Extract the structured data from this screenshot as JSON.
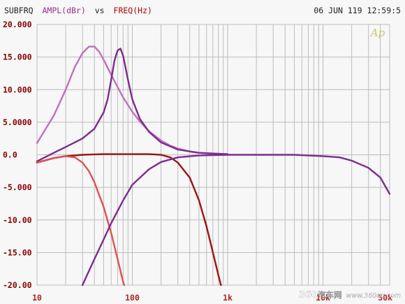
{
  "header": {
    "t1": "SUBFRQ",
    "t2": "AMPL(dBr)",
    "t3": "vs",
    "t4": "FREQ(Hz)",
    "timestamp": "06 JUN 119 12:59:5"
  },
  "logo": "Ap",
  "watermark": {
    "num": "360",
    "cn": "汽车网",
    "url": "www.360qc.com"
  },
  "colors": {
    "background": "#f7f7f7",
    "grid": "#bcbcbc",
    "ytick": "#8b0000",
    "xtick": "#b22222",
    "ampl": "#9b2f8f",
    "freq": "#b00000",
    "logo": "#c8c878"
  },
  "chart_data": {
    "type": "line",
    "xscale": "log",
    "xlim": [
      10,
      50000
    ],
    "ylim": [
      -20,
      20
    ],
    "grid": true,
    "legend": "none",
    "y_tick_labels": [
      "20.000",
      "15.000",
      "10.000",
      "5.0000",
      "0.0",
      "-5.000",
      "-10.00",
      "-15.00",
      "-20.00"
    ],
    "y_tick_values": [
      20,
      15,
      10,
      5,
      0,
      -5,
      -10,
      -15,
      -20
    ],
    "x_tick_labels": [
      "10",
      "100",
      "1k",
      "10k",
      "50k"
    ],
    "x_tick_values": [
      10,
      100,
      1000,
      10000,
      50000
    ],
    "series": [
      {
        "color": "#c070c0",
        "points": [
          [
            10,
            1.8
          ],
          [
            15,
            6
          ],
          [
            20,
            10
          ],
          [
            25,
            13.5
          ],
          [
            30,
            15.6
          ],
          [
            35,
            16.6
          ],
          [
            40,
            16.6
          ],
          [
            45,
            15.8
          ],
          [
            50,
            14.6
          ],
          [
            60,
            12.3
          ],
          [
            70,
            10.4
          ],
          [
            80,
            8.8
          ],
          [
            100,
            6.6
          ],
          [
            120,
            5.1
          ],
          [
            150,
            3.6
          ],
          [
            200,
            2.2
          ],
          [
            250,
            1.4
          ],
          [
            300,
            0.95
          ],
          [
            400,
            0.5
          ],
          [
            500,
            0.3
          ],
          [
            700,
            0.15
          ],
          [
            1000,
            0.1
          ]
        ]
      },
      {
        "color": "#7d2b90",
        "points": [
          [
            10,
            -1
          ],
          [
            15,
            0.3
          ],
          [
            20,
            1.2
          ],
          [
            30,
            2.5
          ],
          [
            40,
            4
          ],
          [
            50,
            6.5
          ],
          [
            55,
            8.5
          ],
          [
            60,
            11.5
          ],
          [
            65,
            14.5
          ],
          [
            70,
            16
          ],
          [
            75,
            16.3
          ],
          [
            80,
            15.2
          ],
          [
            90,
            11.5
          ],
          [
            100,
            8.5
          ],
          [
            120,
            5.5
          ],
          [
            150,
            3.5
          ],
          [
            200,
            1.9
          ],
          [
            300,
            0.8
          ],
          [
            500,
            0.3
          ],
          [
            1000,
            0.1
          ]
        ]
      },
      {
        "color": "#a01010",
        "points": [
          [
            10,
            -1.2
          ],
          [
            15,
            -0.5
          ],
          [
            20,
            -0.2
          ],
          [
            30,
            0
          ],
          [
            50,
            0.1
          ],
          [
            100,
            0.1
          ],
          [
            150,
            0.1
          ],
          [
            200,
            0
          ],
          [
            250,
            -0.4
          ],
          [
            300,
            -1.2
          ],
          [
            400,
            -3.5
          ],
          [
            500,
            -7
          ],
          [
            600,
            -11
          ],
          [
            700,
            -15
          ],
          [
            800,
            -18.5
          ],
          [
            850,
            -20
          ]
        ]
      },
      {
        "color": "#e05050",
        "points": [
          [
            10,
            -1.2
          ],
          [
            15,
            -0.5
          ],
          [
            20,
            -0.2
          ],
          [
            25,
            -0.4
          ],
          [
            30,
            -1.2
          ],
          [
            35,
            -2.5
          ],
          [
            40,
            -4.2
          ],
          [
            50,
            -8
          ],
          [
            60,
            -12
          ],
          [
            70,
            -16
          ],
          [
            80,
            -19.5
          ],
          [
            82,
            -20
          ]
        ]
      },
      {
        "color": "#7d2b90",
        "points": [
          [
            30,
            -20
          ],
          [
            40,
            -16
          ],
          [
            50,
            -13
          ],
          [
            60,
            -10.5
          ],
          [
            80,
            -7
          ],
          [
            100,
            -4.6
          ],
          [
            150,
            -2.2
          ],
          [
            200,
            -1.1
          ],
          [
            300,
            -0.4
          ],
          [
            500,
            -0.1
          ],
          [
            1000,
            0
          ],
          [
            2000,
            0
          ],
          [
            5000,
            0
          ],
          [
            10000,
            -0.2
          ],
          [
            15000,
            -0.4
          ],
          [
            20000,
            -0.9
          ],
          [
            30000,
            -2
          ],
          [
            40000,
            -3.5
          ],
          [
            50000,
            -6
          ]
        ]
      }
    ]
  }
}
